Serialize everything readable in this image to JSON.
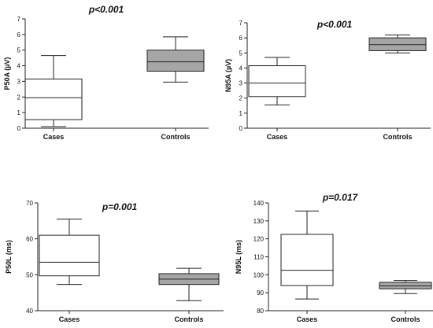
{
  "chart_data": [
    {
      "type": "box",
      "ylabel": "P50A (µV)",
      "annotation": "p<0.001",
      "ylim": [
        0,
        7
      ],
      "yticks": [
        0,
        1,
        2,
        3,
        4,
        5,
        6,
        7
      ],
      "categories": [
        "Cases",
        "Controls"
      ],
      "boxes": [
        {
          "category": "Cases",
          "min": 0.1,
          "q1": 0.55,
          "median": 1.95,
          "q3": 3.15,
          "max": 4.65,
          "fill": "#ffffff"
        },
        {
          "category": "Controls",
          "min": 2.95,
          "q1": 3.65,
          "median": 4.25,
          "q3": 5.0,
          "max": 5.85,
          "fill": "#a6a6a6"
        }
      ]
    },
    {
      "type": "box",
      "ylabel": "N95A (µV)",
      "annotation": "p<0.001",
      "ylim": [
        0,
        7
      ],
      "yticks": [
        0,
        1,
        2,
        3,
        4,
        5,
        6,
        7
      ],
      "categories": [
        "Cases",
        "Controls"
      ],
      "boxes": [
        {
          "category": "Cases",
          "min": 1.55,
          "q1": 2.1,
          "median": 3.0,
          "q3": 4.15,
          "max": 4.7,
          "fill": "#ffffff"
        },
        {
          "category": "Controls",
          "min": 5.0,
          "q1": 5.15,
          "median": 5.55,
          "q3": 6.0,
          "max": 6.2,
          "fill": "#a6a6a6"
        }
      ]
    },
    {
      "type": "box",
      "ylabel": "P50L (ms)",
      "annotation": "p=0.001",
      "ylim": [
        40,
        70
      ],
      "yticks": [
        40,
        50,
        60,
        70
      ],
      "categories": [
        "Cases",
        "Controls"
      ],
      "boxes": [
        {
          "category": "Cases",
          "min": 47.3,
          "q1": 49.7,
          "median": 53.5,
          "q3": 61.0,
          "max": 65.5,
          "fill": "#ffffff"
        },
        {
          "category": "Controls",
          "min": 42.8,
          "q1": 47.3,
          "median": 48.8,
          "q3": 50.3,
          "max": 51.8,
          "fill": "#a6a6a6"
        }
      ]
    },
    {
      "type": "box",
      "ylabel": "N95L (ms)",
      "annotation": "p=0.017",
      "ylim": [
        80,
        140
      ],
      "yticks": [
        80,
        90,
        100,
        110,
        120,
        130,
        140
      ],
      "categories": [
        "Cases",
        "Controls"
      ],
      "boxes": [
        {
          "category": "Cases",
          "min": 86.5,
          "q1": 94.0,
          "median": 102.5,
          "q3": 122.5,
          "max": 135.5,
          "fill": "#ffffff"
        },
        {
          "category": "Controls",
          "min": 89.5,
          "q1": 92.2,
          "median": 93.8,
          "q3": 95.8,
          "max": 96.8,
          "fill": "#a6a6a6"
        }
      ]
    }
  ]
}
